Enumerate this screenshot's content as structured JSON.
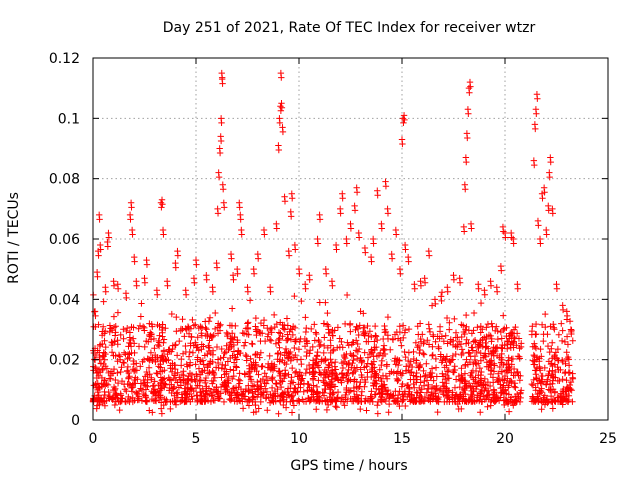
{
  "chart_data": {
    "type": "scatter",
    "title": "Day 251 of 2021, Rate Of TEC Index for receiver wtzr",
    "xlabel": "GPS time / hours",
    "ylabel": "ROTI / TECUs",
    "xlim": [
      0,
      25
    ],
    "ylim": [
      0,
      0.12
    ],
    "xticks": [
      0,
      5,
      10,
      15,
      20,
      25
    ],
    "xtick_labels": [
      "0",
      "5",
      "10",
      "15",
      "20",
      "25"
    ],
    "yticks": [
      0,
      0.02,
      0.04,
      0.06,
      0.08,
      0.1,
      0.12
    ],
    "ytick_labels": [
      "0",
      "0.02",
      "0.04",
      "0.06",
      "0.08",
      "0.1",
      "0.12"
    ],
    "grid": true,
    "marker": "+",
    "series_color": "#ff0000",
    "data_gaps_hours": [
      [
        20.8,
        21.3
      ]
    ],
    "data_end_hours": 23.3,
    "series": [
      {
        "name": "ROTI",
        "dense_band": {
          "typical_min": 0.006,
          "typical_max": 0.032
        },
        "points": [
          [
            0.1,
            0.036
          ],
          [
            0.2,
            0.049
          ],
          [
            0.25,
            0.056
          ],
          [
            0.3,
            0.068
          ],
          [
            0.35,
            0.058
          ],
          [
            0.6,
            0.044
          ],
          [
            0.7,
            0.059
          ],
          [
            0.75,
            0.062
          ],
          [
            1.0,
            0.046
          ],
          [
            1.2,
            0.045
          ],
          [
            1.6,
            0.042
          ],
          [
            1.8,
            0.068
          ],
          [
            1.85,
            0.072
          ],
          [
            1.9,
            0.063
          ],
          [
            2.0,
            0.054
          ],
          [
            2.1,
            0.046
          ],
          [
            2.5,
            0.047
          ],
          [
            2.6,
            0.053
          ],
          [
            3.1,
            0.043
          ],
          [
            3.3,
            0.072
          ],
          [
            3.35,
            0.073
          ],
          [
            3.4,
            0.063
          ],
          [
            3.6,
            0.046
          ],
          [
            4.0,
            0.052
          ],
          [
            4.1,
            0.056
          ],
          [
            4.5,
            0.043
          ],
          [
            4.9,
            0.047
          ],
          [
            5.0,
            0.053
          ],
          [
            5.5,
            0.048
          ],
          [
            5.8,
            0.044
          ],
          [
            6.0,
            0.052
          ],
          [
            6.05,
            0.07
          ],
          [
            6.1,
            0.082
          ],
          [
            6.15,
            0.09
          ],
          [
            6.2,
            0.094
          ],
          [
            6.22,
            0.1
          ],
          [
            6.25,
            0.115
          ],
          [
            6.27,
            0.113
          ],
          [
            6.3,
            0.078
          ],
          [
            6.35,
            0.072
          ],
          [
            6.7,
            0.055
          ],
          [
            6.8,
            0.048
          ],
          [
            7.0,
            0.05
          ],
          [
            7.1,
            0.072
          ],
          [
            7.15,
            0.068
          ],
          [
            7.2,
            0.063
          ],
          [
            7.5,
            0.044
          ],
          [
            7.8,
            0.05
          ],
          [
            8.0,
            0.055
          ],
          [
            8.3,
            0.063
          ],
          [
            8.6,
            0.044
          ],
          [
            8.9,
            0.065
          ],
          [
            9.0,
            0.091
          ],
          [
            9.05,
            0.1
          ],
          [
            9.1,
            0.104
          ],
          [
            9.12,
            0.115
          ],
          [
            9.15,
            0.105
          ],
          [
            9.2,
            0.097
          ],
          [
            9.3,
            0.074
          ],
          [
            9.5,
            0.056
          ],
          [
            9.6,
            0.069
          ],
          [
            9.65,
            0.075
          ],
          [
            9.8,
            0.058
          ],
          [
            10.0,
            0.05
          ],
          [
            10.3,
            0.045
          ],
          [
            10.5,
            0.048
          ],
          [
            10.9,
            0.06
          ],
          [
            11.0,
            0.068
          ],
          [
            11.3,
            0.05
          ],
          [
            11.6,
            0.046
          ],
          [
            11.8,
            0.058
          ],
          [
            12.0,
            0.07
          ],
          [
            12.1,
            0.075
          ],
          [
            12.3,
            0.06
          ],
          [
            12.5,
            0.065
          ],
          [
            12.7,
            0.071
          ],
          [
            12.8,
            0.077
          ],
          [
            12.9,
            0.062
          ],
          [
            13.2,
            0.057
          ],
          [
            13.5,
            0.054
          ],
          [
            13.6,
            0.06
          ],
          [
            13.8,
            0.076
          ],
          [
            14.0,
            0.065
          ],
          [
            14.2,
            0.079
          ],
          [
            14.3,
            0.07
          ],
          [
            14.5,
            0.055
          ],
          [
            14.7,
            0.063
          ],
          [
            14.9,
            0.05
          ],
          [
            15.0,
            0.093
          ],
          [
            15.05,
            0.1
          ],
          [
            15.1,
            0.101
          ],
          [
            15.15,
            0.058
          ],
          [
            15.3,
            0.054
          ],
          [
            15.6,
            0.045
          ],
          [
            15.9,
            0.046
          ],
          [
            16.1,
            0.047
          ],
          [
            16.3,
            0.056
          ],
          [
            16.6,
            0.04
          ],
          [
            16.9,
            0.041
          ],
          [
            17.2,
            0.044
          ],
          [
            17.5,
            0.048
          ],
          [
            17.8,
            0.047
          ],
          [
            18.0,
            0.064
          ],
          [
            18.05,
            0.078
          ],
          [
            18.1,
            0.087
          ],
          [
            18.15,
            0.095
          ],
          [
            18.2,
            0.103
          ],
          [
            18.25,
            0.11
          ],
          [
            18.3,
            0.112
          ],
          [
            18.35,
            0.065
          ],
          [
            18.7,
            0.045
          ],
          [
            19.0,
            0.043
          ],
          [
            19.3,
            0.046
          ],
          [
            19.6,
            0.044
          ],
          [
            19.8,
            0.051
          ],
          [
            19.9,
            0.064
          ],
          [
            20.0,
            0.062
          ],
          [
            20.3,
            0.062
          ],
          [
            20.4,
            0.06
          ],
          [
            20.6,
            0.045
          ],
          [
            21.4,
            0.086
          ],
          [
            21.45,
            0.098
          ],
          [
            21.5,
            0.103
          ],
          [
            21.55,
            0.108
          ],
          [
            21.6,
            0.066
          ],
          [
            21.7,
            0.06
          ],
          [
            21.8,
            0.075
          ],
          [
            21.9,
            0.077
          ],
          [
            22.0,
            0.063
          ],
          [
            22.1,
            0.071
          ],
          [
            22.15,
            0.082
          ],
          [
            22.2,
            0.087
          ],
          [
            22.3,
            0.07
          ],
          [
            22.5,
            0.045
          ],
          [
            22.8,
            0.038
          ],
          [
            23.0,
            0.036
          ],
          [
            23.2,
            0.03
          ]
        ]
      }
    ]
  }
}
